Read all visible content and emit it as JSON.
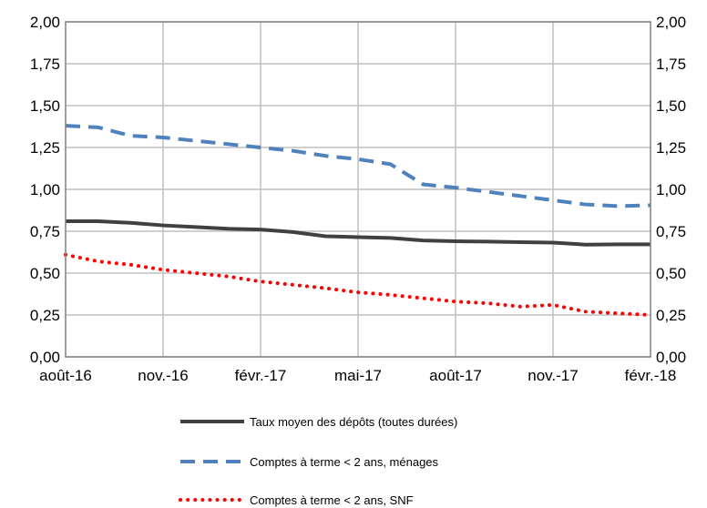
{
  "chart_data": {
    "type": "line",
    "title": "",
    "xlabel": "",
    "ylabel": "",
    "ylim": [
      0,
      2
    ],
    "y_ticks": [
      "0,00",
      "0,25",
      "0,50",
      "0,75",
      "1,00",
      "1,25",
      "1,50",
      "1,75",
      "2,00"
    ],
    "x_tick_labels": [
      "août-16",
      "nov.-16",
      "févr.-17",
      "mai-17",
      "août-17",
      "nov.-17",
      "févr.-18"
    ],
    "x": [
      "août-16",
      "sept.-16",
      "oct.-16",
      "nov.-16",
      "déc.-16",
      "janv.-17",
      "févr.-17",
      "mars-17",
      "avr.-17",
      "mai-17",
      "juin-17",
      "juil.-17",
      "août-17",
      "sept.-17",
      "oct.-17",
      "nov.-17",
      "déc.-17",
      "janv.-18",
      "févr.-18"
    ],
    "grid": true,
    "legend_position": "bottom",
    "series": [
      {
        "name": "Taux moyen des dépôts (toutes durées)",
        "color": "#404040",
        "style": "solid",
        "values": [
          0.81,
          0.81,
          0.8,
          0.785,
          0.775,
          0.765,
          0.76,
          0.745,
          0.72,
          0.715,
          0.71,
          0.695,
          0.69,
          0.688,
          0.685,
          0.682,
          0.67,
          0.672,
          0.672
        ]
      },
      {
        "name": "Comptes à terme < 2 ans, ménages",
        "color": "#4F81BD",
        "style": "dashed",
        "values": [
          1.38,
          1.37,
          1.32,
          1.31,
          1.29,
          1.27,
          1.25,
          1.23,
          1.2,
          1.18,
          1.15,
          1.03,
          1.01,
          0.985,
          0.96,
          0.935,
          0.91,
          0.9,
          0.905
        ]
      },
      {
        "name": "Comptes à terme < 2 ans, SNF",
        "color": "#FF0000",
        "style": "dotted",
        "values": [
          0.61,
          0.57,
          0.55,
          0.52,
          0.5,
          0.48,
          0.45,
          0.43,
          0.41,
          0.385,
          0.37,
          0.35,
          0.33,
          0.32,
          0.3,
          0.31,
          0.27,
          0.26,
          0.25
        ]
      }
    ]
  }
}
